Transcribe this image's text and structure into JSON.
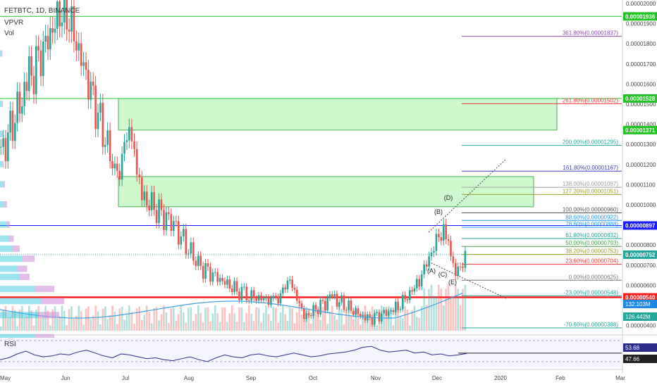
{
  "header": {
    "symbol_line": "FETBTC, 1D, BINANCE",
    "indicator_vpvr": "VPVR",
    "indicator_vol": "Vol",
    "rsi_label": "RSI"
  },
  "colors": {
    "up": "#26a69a",
    "down": "#ef5350",
    "zone_fill": "#b9f6b9",
    "zone_border": "#4caf50",
    "support": "#ff1f1f",
    "rsi_line": "#2c2c8c",
    "volume_ma": "#3ea0e0"
  },
  "chart_data": [
    {
      "type": "candlestick",
      "symbol": "FETBTC",
      "timeframe": "1D",
      "exchange": "BINANCE",
      "x_tick_labels": [
        "May",
        "Jun",
        "Jul",
        "Aug",
        "Sep",
        "Oct",
        "Nov",
        "Dec",
        "2020",
        "Feb",
        "Mar"
      ],
      "y_tick_labels": [
        "0.00002000",
        "0.00001900",
        "0.00001800",
        "0.00001700",
        "0.00001600",
        "0.00001500",
        "0.00001400",
        "0.00001300",
        "0.00001200",
        "0.00001100",
        "0.00001000",
        "0.00000900",
        "0.00000800",
        "0.00000700",
        "0.00000600",
        "0.00000500",
        "0.00000400"
      ],
      "ylim": [
        3.8e-06,
        2.03e-05
      ],
      "series_close_approx": [
        {
          "x": "May",
          "y": 1.25e-05
        },
        {
          "x": "May mid",
          "y": 1.62e-05
        },
        {
          "x": "Jun",
          "y": 2e-05
        },
        {
          "x": "late Jun",
          "y": 1.13e-05
        },
        {
          "x": "early Jul",
          "y": 1.4e-05
        },
        {
          "x": "mid Jul",
          "y": 1.04e-05
        },
        {
          "x": "Aug",
          "y": 9e-06
        },
        {
          "x": "mid Aug",
          "y": 7e-06
        },
        {
          "x": "Sep",
          "y": 5.5e-06
        },
        {
          "x": "mid Sep",
          "y": 5.2e-06
        },
        {
          "x": "late Sep",
          "y": 6.3e-06
        },
        {
          "x": "Oct",
          "y": 4.4e-06
        },
        {
          "x": "mid Oct",
          "y": 5.4e-06
        },
        {
          "x": "Nov",
          "y": 4.3e-06
        },
        {
          "x": "mid Nov",
          "y": 4.8e-06
        },
        {
          "x": "late Nov",
          "y": 6e-06
        },
        {
          "x": "Dec",
          "y": 9e-06
        },
        {
          "x": "mid Dec",
          "y": 6.6e-06
        },
        {
          "x": "mid Dec+",
          "y": 7.5e-06
        }
      ],
      "price_labels": [
        {
          "text": "0.00001936",
          "value": 1.936e-05,
          "color": "#22c322"
        },
        {
          "text": "0.00001528",
          "value": 1.528e-05,
          "color": "#22c322"
        },
        {
          "text": "0.00001371",
          "value": 1.371e-05,
          "color": "#22c322"
        },
        {
          "text": "0.00000897",
          "value": 8.97e-06,
          "color": "#1a1aff"
        },
        {
          "text": "0.00000752",
          "value": 7.52e-06,
          "color": "#26a69a"
        },
        {
          "text": "0.00000540",
          "value": 5.4e-06,
          "color": "#ff1f1f"
        }
      ],
      "volume_labels": [
        "132.103M",
        "126.442M"
      ],
      "zones": [
        {
          "name": "upper-resistance-zone",
          "from": 1.371e-05,
          "to": 1.528e-05
        },
        {
          "name": "mid-resistance-zone",
          "from": 9.9e-06,
          "to": 1.14e-05
        }
      ],
      "horizontal_levels": [
        {
          "value": 1.936e-05,
          "color": "#22c322"
        },
        {
          "value": 1.528e-05,
          "color": "#22c322"
        },
        {
          "value": 8.97e-06,
          "color": "#1a1aff"
        },
        {
          "value": 5.4e-06,
          "color": "#ff1f1f"
        }
      ],
      "fib_levels": [
        {
          "label": "361.80%(0.00001837)",
          "value": 1.837e-05,
          "color": "#8e44ad"
        },
        {
          "label": "261.80%(0.00001502)",
          "value": 1.502e-05,
          "color": "#e53935"
        },
        {
          "label": "200.00%(0.00001295)",
          "value": 1.295e-05,
          "color": "#26a69a"
        },
        {
          "label": "161.80%(0.00001167)",
          "value": 1.167e-05,
          "color": "#3f3fbf"
        },
        {
          "label": "138.00%(0.00001087)",
          "value": 1.087e-05,
          "color": "#9e9e9e"
        },
        {
          "label": "127.20%(0.00001051)",
          "value": 1.051e-05,
          "color": "#9c9c27"
        },
        {
          "label": "100.00%(0.00000960)",
          "value": 9.6e-06,
          "color": "#555555"
        },
        {
          "label": "88.60%(0.00000922)",
          "value": 9.22e-06,
          "color": "#2196f3"
        },
        {
          "label": "78.60%(0.00000888)",
          "value": 8.88e-06,
          "color": "#2196f3"
        },
        {
          "label": "61.80%(0.00000832)",
          "value": 8.32e-06,
          "color": "#26a69a"
        },
        {
          "label": "50.00%(0.00000793)",
          "value": 7.93e-06,
          "color": "#43a047"
        },
        {
          "label": "38.20%(0.00000753)",
          "value": 7.53e-06,
          "color": "#9c9c27"
        },
        {
          "label": "23.60%(0.00000704)",
          "value": 7.04e-06,
          "color": "#e53935"
        },
        {
          "label": "0.00%(0.00000625)",
          "value": 6.25e-06,
          "color": "#777777"
        },
        {
          "label": "-23.00%(0.00000548)",
          "value": 5.48e-06,
          "color": "#26a69a"
        },
        {
          "label": "-70.60%(0.00000388)",
          "value": 3.88e-06,
          "color": "#26a69a"
        }
      ],
      "wave_labels": [
        "(A)",
        "(B)",
        "(C)",
        "(D)",
        "(E)"
      ]
    },
    {
      "type": "line",
      "name": "RSI",
      "y_tick_labels": [
        "53.68",
        "47.66"
      ],
      "values": [
        40,
        44,
        52,
        58,
        50,
        46,
        48,
        52,
        50,
        56,
        60,
        54,
        48,
        44,
        52,
        50,
        46,
        42,
        44,
        40,
        38,
        42,
        46,
        40,
        36,
        44,
        50,
        46,
        44,
        50,
        52,
        48,
        46,
        50,
        54,
        50,
        46,
        48,
        52,
        54,
        56,
        60,
        66,
        68,
        60,
        56,
        58,
        60,
        54,
        56,
        50,
        52,
        48,
        50,
        53
      ]
    }
  ]
}
